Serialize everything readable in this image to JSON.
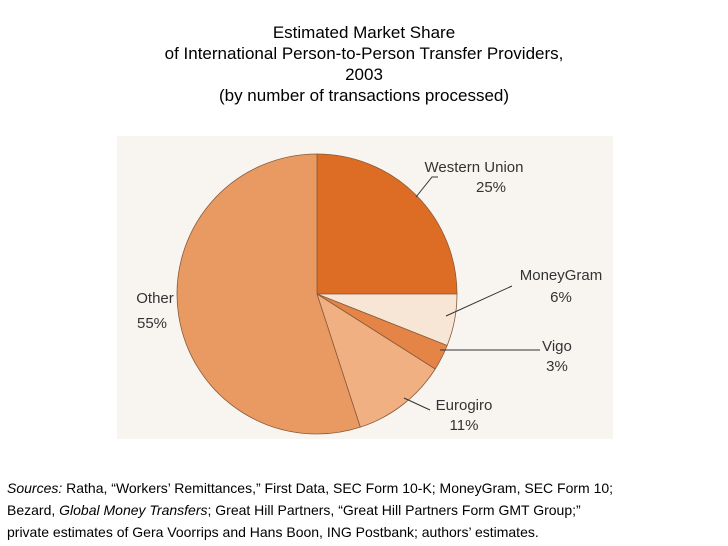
{
  "chart_data": {
    "type": "pie",
    "title_lines": [
      "Estimated Market Share",
      "of International Person-to-Person Transfer Providers,",
      "2003",
      "(by number of transactions processed)"
    ],
    "slices": [
      {
        "name": "Western Union",
        "value_label": "25%",
        "value": 25,
        "color": "#dd6c24"
      },
      {
        "name": "MoneyGram",
        "value_label": "6%",
        "value": 6,
        "color": "#f7e6d6"
      },
      {
        "name": "Vigo",
        "value_label": "3%",
        "value": 3,
        "color": "#e48447"
      },
      {
        "name": "Eurogiro",
        "value_label": "11%",
        "value": 11,
        "color": "#f0b081"
      },
      {
        "name": "Other",
        "value_label": "55%",
        "value": 55,
        "color": "#e99a62"
      }
    ],
    "start": "12 o'clock",
    "direction": "clockwise"
  },
  "sources": {
    "label": "Sources:",
    "line1_text": " Ratha, “Workers’ Remittances,” First Data, SEC Form 10-K; MoneyGram, SEC Form 10;",
    "line2_pre": "Bezard, ",
    "line2_italic": "Global Money Transfers",
    "line2_post": "; Great Hill Partners, “Great Hill Partners Form GMT Group;”",
    "line3": "private estimates of Gera Voorrips and Hans Boon, ING Postbank; authors’ estimates."
  }
}
